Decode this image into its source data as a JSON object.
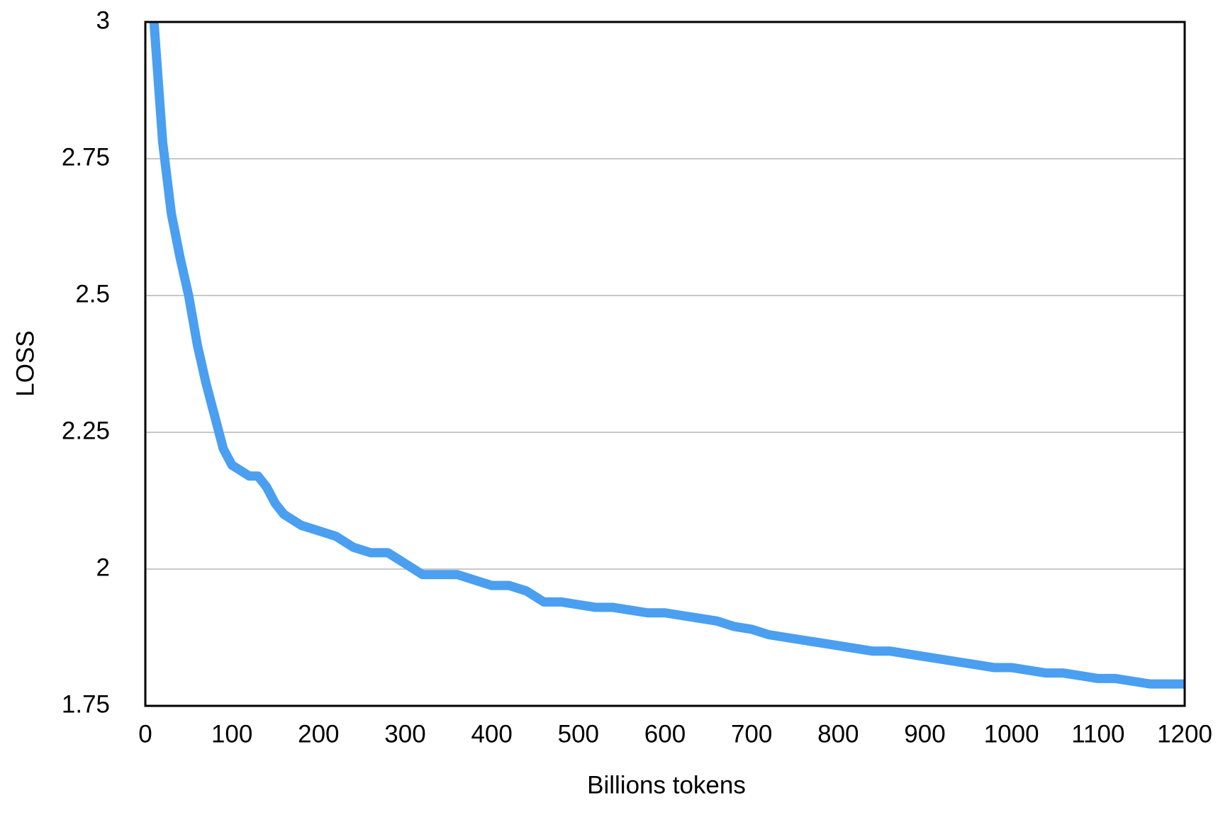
{
  "chart_data": {
    "type": "line",
    "xlabel": "Billions tokens",
    "ylabel": "LOSS",
    "x": [
      10,
      20,
      30,
      40,
      50,
      60,
      70,
      80,
      90,
      100,
      110,
      120,
      130,
      140,
      150,
      160,
      170,
      180,
      200,
      220,
      240,
      260,
      280,
      300,
      320,
      340,
      360,
      380,
      400,
      420,
      440,
      460,
      480,
      500,
      520,
      540,
      560,
      580,
      600,
      620,
      640,
      660,
      680,
      700,
      720,
      740,
      760,
      780,
      800,
      820,
      840,
      860,
      880,
      900,
      920,
      940,
      960,
      980,
      1000,
      1020,
      1040,
      1060,
      1080,
      1100,
      1120,
      1140,
      1160,
      1180,
      1200
    ],
    "series": [
      {
        "name": "LOSS",
        "color": "#4a9ff0",
        "values": [
          3.0,
          2.78,
          2.65,
          2.57,
          2.5,
          2.41,
          2.34,
          2.28,
          2.22,
          2.19,
          2.18,
          2.17,
          2.17,
          2.15,
          2.12,
          2.1,
          2.09,
          2.08,
          2.07,
          2.06,
          2.04,
          2.03,
          2.03,
          2.01,
          1.99,
          1.99,
          1.99,
          1.98,
          1.97,
          1.97,
          1.96,
          1.94,
          1.94,
          1.935,
          1.93,
          1.93,
          1.925,
          1.92,
          1.92,
          1.915,
          1.91,
          1.905,
          1.895,
          1.89,
          1.88,
          1.875,
          1.87,
          1.865,
          1.86,
          1.855,
          1.85,
          1.85,
          1.845,
          1.84,
          1.835,
          1.83,
          1.825,
          1.82,
          1.82,
          1.815,
          1.81,
          1.81,
          1.805,
          1.8,
          1.8,
          1.795,
          1.79,
          1.79,
          1.79
        ]
      }
    ],
    "xlim": [
      0,
      1200
    ],
    "xticks": [
      0,
      100,
      200,
      300,
      400,
      500,
      600,
      700,
      800,
      900,
      1000,
      1100,
      1200
    ],
    "ylim": [
      1.75,
      3
    ],
    "yticks": [
      1.75,
      2,
      2.25,
      2.5,
      2.75,
      3
    ],
    "grid": true
  }
}
